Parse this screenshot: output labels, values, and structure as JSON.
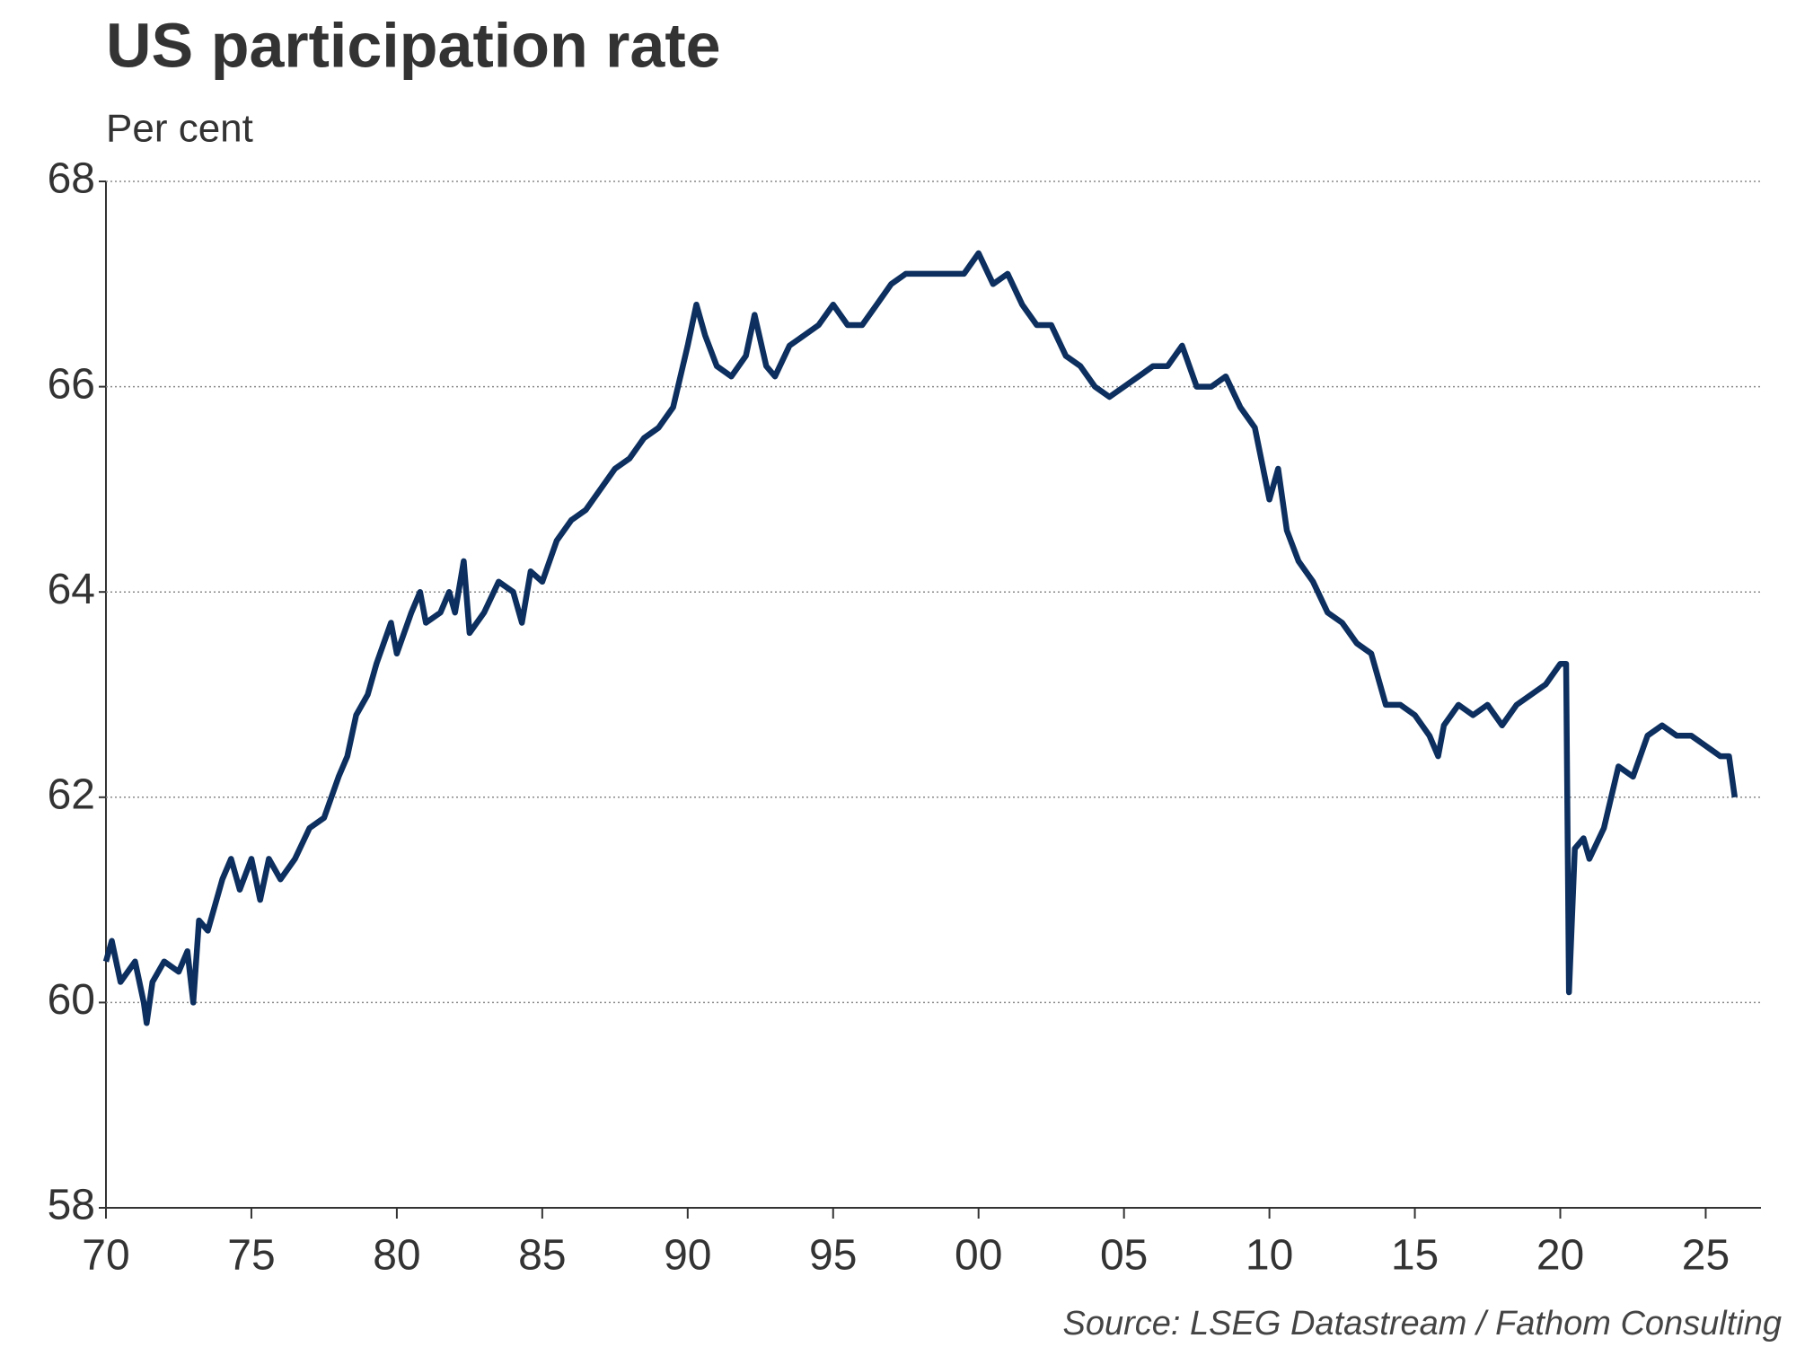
{
  "chart_data": {
    "type": "line",
    "title": "US participation rate",
    "subtitle": "Per cent",
    "source": "Source: LSEG Datastream / Fathom Consulting",
    "x": [
      1970.0,
      1970.2,
      1970.5,
      1971.0,
      1971.3,
      1971.4,
      1971.6,
      1972.0,
      1972.5,
      1972.8,
      1973.0,
      1973.2,
      1973.5,
      1974.0,
      1974.3,
      1974.6,
      1975.0,
      1975.3,
      1975.6,
      1976.0,
      1976.5,
      1977.0,
      1977.5,
      1978.0,
      1978.3,
      1978.6,
      1979.0,
      1979.3,
      1979.8,
      1980.0,
      1980.5,
      1980.8,
      1981.0,
      1981.5,
      1981.8,
      1982.0,
      1982.3,
      1982.5,
      1983.0,
      1983.5,
      1984.0,
      1984.3,
      1984.6,
      1985.0,
      1985.5,
      1986.0,
      1986.5,
      1987.0,
      1987.5,
      1988.0,
      1988.5,
      1989.0,
      1989.5,
      1990.0,
      1990.3,
      1990.6,
      1991.0,
      1991.5,
      1992.0,
      1992.3,
      1992.7,
      1993.0,
      1993.5,
      1994.0,
      1994.5,
      1995.0,
      1995.5,
      1996.0,
      1996.5,
      1997.0,
      1997.5,
      1998.0,
      1998.5,
      1999.0,
      1999.5,
      2000.0,
      2000.5,
      2001.0,
      2001.5,
      2002.0,
      2002.5,
      2003.0,
      2003.5,
      2004.0,
      2004.5,
      2005.0,
      2005.5,
      2006.0,
      2006.5,
      2007.0,
      2007.5,
      2008.0,
      2008.5,
      2009.0,
      2009.5,
      2010.0,
      2010.3,
      2010.6,
      2011.0,
      2011.5,
      2012.0,
      2012.5,
      2013.0,
      2013.5,
      2014.0,
      2014.5,
      2015.0,
      2015.5,
      2015.8,
      2016.0,
      2016.5,
      2017.0,
      2017.5,
      2018.0,
      2018.5,
      2019.0,
      2019.5,
      2020.0,
      2020.2,
      2020.3,
      2020.5,
      2020.8,
      2021.0,
      2021.5,
      2022.0,
      2022.5,
      2023.0,
      2023.5,
      2024.0,
      2024.5,
      2025.0,
      2025.5,
      2025.8,
      2026.0
    ],
    "series": [
      {
        "name": "US participation rate",
        "color": "#0c2f5f",
        "values": [
          60.4,
          60.6,
          60.2,
          60.4,
          60.0,
          59.8,
          60.2,
          60.4,
          60.3,
          60.5,
          60.0,
          60.8,
          60.7,
          61.2,
          61.4,
          61.1,
          61.4,
          61.0,
          61.4,
          61.2,
          61.4,
          61.7,
          61.8,
          62.2,
          62.4,
          62.8,
          63.0,
          63.3,
          63.7,
          63.4,
          63.8,
          64.0,
          63.7,
          63.8,
          64.0,
          63.8,
          64.3,
          63.6,
          63.8,
          64.1,
          64.0,
          63.7,
          64.2,
          64.1,
          64.5,
          64.7,
          64.8,
          65.0,
          65.2,
          65.3,
          65.5,
          65.6,
          65.8,
          66.4,
          66.8,
          66.5,
          66.2,
          66.1,
          66.3,
          66.7,
          66.2,
          66.1,
          66.4,
          66.5,
          66.6,
          66.8,
          66.6,
          66.6,
          66.8,
          67.0,
          67.1,
          67.1,
          67.1,
          67.1,
          67.1,
          67.3,
          67.0,
          67.1,
          66.8,
          66.6,
          66.6,
          66.3,
          66.2,
          66.0,
          65.9,
          66.0,
          66.1,
          66.2,
          66.2,
          66.4,
          66.0,
          66.0,
          66.1,
          65.8,
          65.6,
          64.9,
          65.2,
          64.6,
          64.3,
          64.1,
          63.8,
          63.7,
          63.5,
          63.4,
          62.9,
          62.9,
          62.8,
          62.6,
          62.4,
          62.7,
          62.9,
          62.8,
          62.9,
          62.7,
          62.9,
          63.0,
          63.1,
          63.3,
          63.3,
          60.1,
          61.5,
          61.6,
          61.4,
          61.7,
          62.3,
          62.2,
          62.6,
          62.7,
          62.6,
          62.6,
          62.5,
          62.4,
          62.4,
          62.0
        ]
      }
    ],
    "xlim": [
      1970,
      2026.9
    ],
    "xticks": [
      {
        "value": 1970,
        "label": "70"
      },
      {
        "value": 1975,
        "label": "75"
      },
      {
        "value": 1980,
        "label": "80"
      },
      {
        "value": 1985,
        "label": "85"
      },
      {
        "value": 1990,
        "label": "90"
      },
      {
        "value": 1995,
        "label": "95"
      },
      {
        "value": 2000,
        "label": "00"
      },
      {
        "value": 2005,
        "label": "05"
      },
      {
        "value": 2010,
        "label": "10"
      },
      {
        "value": 2015,
        "label": "15"
      },
      {
        "value": 2020,
        "label": "20"
      },
      {
        "value": 2025,
        "label": "25"
      }
    ],
    "ylim": [
      58,
      68
    ],
    "yticks": [
      58,
      60,
      62,
      64,
      66,
      68
    ],
    "grid": true
  }
}
